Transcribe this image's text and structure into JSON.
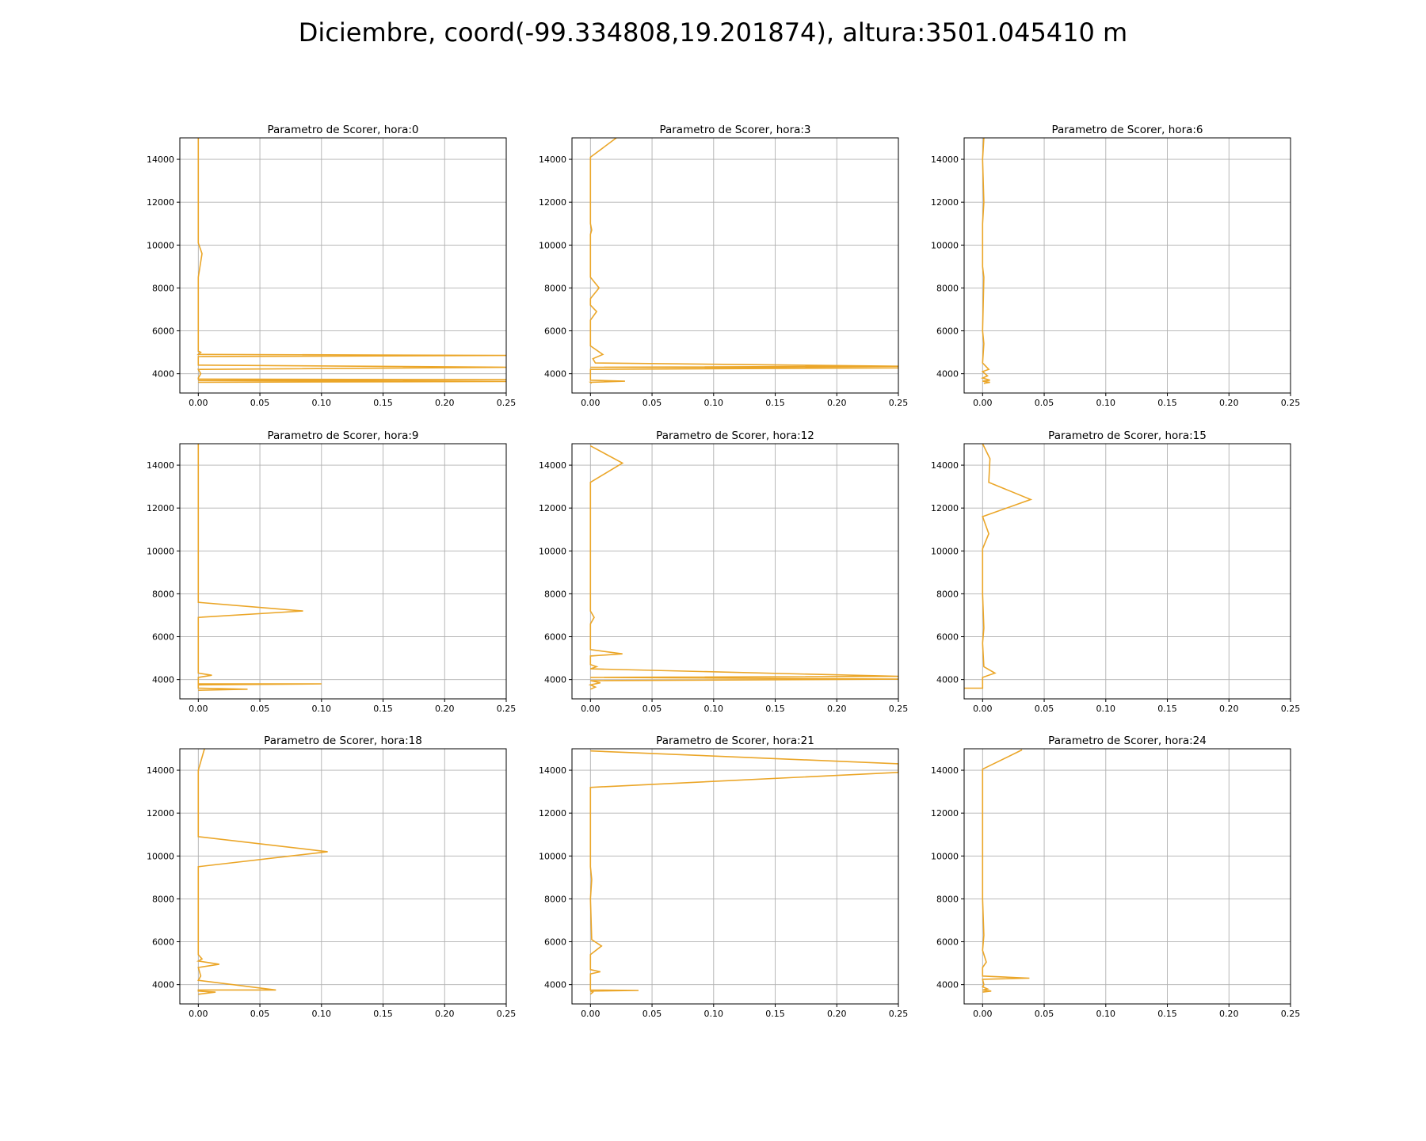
{
  "figure": {
    "suptitle": "Diciembre, coord(-99.334808,19.201874), altura:3501.045410 m",
    "line_color": "#EBA628"
  },
  "chart_data": [
    {
      "type": "line",
      "title": "Parametro de Scorer, hora:0",
      "xlim": [
        -0.015,
        0.25
      ],
      "ylim": [
        3100,
        15000
      ],
      "xticks": [
        "0.00",
        "0.05",
        "0.10",
        "0.15",
        "0.20",
        "0.25"
      ],
      "yticks": [
        "4000",
        "6000",
        "8000",
        "10000",
        "12000",
        "14000"
      ],
      "grid": true,
      "x": [
        0.0,
        0.0,
        0.0,
        0.0,
        0.003,
        0.0,
        0.0,
        0.0,
        0.0,
        0.0,
        0.002,
        0.0,
        0.25,
        0.0,
        0.0,
        0.25,
        0.0,
        0.002,
        0.0,
        0.0,
        0.25,
        0.0,
        0.25,
        0.0
      ],
      "y": [
        15000,
        14000,
        12000,
        10100,
        9600,
        8500,
        8000,
        6000,
        5100,
        5050,
        5000,
        4900,
        4850,
        4800,
        4400,
        4300,
        4200,
        4000,
        3800,
        3750,
        3720,
        3680,
        3640,
        3600
      ]
    },
    {
      "type": "line",
      "title": "Parametro de Scorer, hora:3",
      "xlim": [
        -0.015,
        0.25
      ],
      "ylim": [
        3100,
        15000
      ],
      "xticks": [
        "0.00",
        "0.05",
        "0.10",
        "0.15",
        "0.20",
        "0.25"
      ],
      "yticks": [
        "4000",
        "6000",
        "8000",
        "10000",
        "12000",
        "14000"
      ],
      "grid": true,
      "x": [
        0.021,
        0.0,
        0.0,
        0.001,
        0.0,
        0.0,
        0.007,
        0.0,
        0.0,
        0.005,
        0.0,
        0.0,
        0.0,
        0.01,
        0.002,
        0.004,
        0.25,
        0.0,
        0.25,
        0.0,
        0.0,
        0.028,
        0.0,
        0.001
      ],
      "y": [
        15000,
        14100,
        11000,
        10700,
        10500,
        8500,
        8000,
        7500,
        7200,
        6900,
        6500,
        5400,
        5300,
        4900,
        4700,
        4500,
        4350,
        4300,
        4270,
        4200,
        3700,
        3650,
        3600,
        3550
      ]
    },
    {
      "type": "line",
      "title": "Parametro de Scorer, hora:6",
      "xlim": [
        -0.015,
        0.25
      ],
      "ylim": [
        3100,
        15000
      ],
      "xticks": [
        "0.00",
        "0.05",
        "0.10",
        "0.15",
        "0.20",
        "0.25"
      ],
      "yticks": [
        "4000",
        "6000",
        "8000",
        "10000",
        "12000",
        "14000"
      ],
      "grid": true,
      "x": [
        0.001,
        0.0,
        0.001,
        0.0,
        0.0,
        0.001,
        0.0,
        0.001,
        0.0,
        0.005,
        0.0,
        0.004,
        0.0,
        0.006,
        0.0,
        0.006,
        0.001
      ],
      "y": [
        15000,
        14000,
        12000,
        11000,
        9000,
        8500,
        6000,
        5400,
        4500,
        4200,
        4100,
        3900,
        3800,
        3700,
        3650,
        3600,
        3550
      ]
    },
    {
      "type": "line",
      "title": "Parametro de Scorer, hora:9",
      "xlim": [
        -0.015,
        0.25
      ],
      "ylim": [
        3100,
        15000
      ],
      "xticks": [
        "0.00",
        "0.05",
        "0.10",
        "0.15",
        "0.20",
        "0.25"
      ],
      "yticks": [
        "4000",
        "6000",
        "8000",
        "10000",
        "12000",
        "14000"
      ],
      "grid": true,
      "x": [
        0.0,
        0.0,
        0.0,
        0.0,
        0.0,
        0.085,
        0.0,
        0.0,
        0.0,
        0.011,
        0.0,
        0.0,
        0.1,
        0.0,
        0.0,
        0.04,
        0.0
      ],
      "y": [
        15000,
        14000,
        12000,
        10000,
        7600,
        7200,
        6900,
        5500,
        4300,
        4200,
        4100,
        3800,
        3800,
        3750,
        3600,
        3550,
        3500
      ]
    },
    {
      "type": "line",
      "title": "Parametro de Scorer, hora:12",
      "xlim": [
        -0.015,
        0.25
      ],
      "ylim": [
        3100,
        15000
      ],
      "xticks": [
        "0.00",
        "0.05",
        "0.10",
        "0.15",
        "0.20",
        "0.25"
      ],
      "yticks": [
        "4000",
        "6000",
        "8000",
        "10000",
        "12000",
        "14000"
      ],
      "grid": true,
      "x": [
        0.0,
        0.026,
        0.0,
        0.0,
        0.0,
        0.003,
        0.0,
        0.0,
        0.026,
        0.0,
        0.0,
        0.005,
        0.0,
        0.25,
        0.0,
        0.25,
        0.0,
        0.008,
        0.0,
        0.004,
        0.0
      ],
      "y": [
        14900,
        14100,
        13200,
        10000,
        7200,
        6900,
        6600,
        5400,
        5200,
        5100,
        4700,
        4600,
        4500,
        4150,
        4100,
        4020,
        3950,
        3850,
        3750,
        3650,
        3550
      ]
    },
    {
      "type": "line",
      "title": "Parametro de Scorer, hora:15",
      "xlim": [
        -0.015,
        0.25
      ],
      "ylim": [
        3100,
        15000
      ],
      "xticks": [
        "0.00",
        "0.05",
        "0.10",
        "0.15",
        "0.20",
        "0.25"
      ],
      "yticks": [
        "4000",
        "6000",
        "8000",
        "10000",
        "12000",
        "14000"
      ],
      "grid": true,
      "x": [
        0.0,
        0.006,
        0.005,
        0.039,
        0.0,
        0.005,
        0.0,
        0.0,
        0.001,
        0.0,
        0.001,
        0.01,
        0.0,
        0.0,
        -0.015
      ],
      "y": [
        15000,
        14300,
        13200,
        12400,
        11600,
        10800,
        10100,
        8000,
        6400,
        5700,
        4600,
        4300,
        4100,
        3600,
        3600
      ]
    },
    {
      "type": "line",
      "title": "Parametro de Scorer, hora:18",
      "xlim": [
        -0.015,
        0.25
      ],
      "ylim": [
        3100,
        15000
      ],
      "xticks": [
        "0.00",
        "0.05",
        "0.10",
        "0.15",
        "0.20",
        "0.25"
      ],
      "yticks": [
        "4000",
        "6000",
        "8000",
        "10000",
        "12000",
        "14000"
      ],
      "grid": true,
      "x": [
        0.005,
        0.0,
        0.0,
        0.0,
        0.105,
        0.0,
        0.0,
        0.0,
        0.003,
        0.0,
        0.017,
        0.0,
        0.002,
        0.0,
        0.063,
        0.0,
        0.0,
        0.014,
        0.0
      ],
      "y": [
        15000,
        14000,
        12000,
        10900,
        10200,
        9500,
        6000,
        5400,
        5200,
        5100,
        4950,
        4800,
        4400,
        4200,
        3750,
        3750,
        3700,
        3650,
        3550
      ]
    },
    {
      "type": "line",
      "title": "Parametro de Scorer, hora:21",
      "xlim": [
        -0.015,
        0.25
      ],
      "ylim": [
        3100,
        15000
      ],
      "xticks": [
        "0.00",
        "0.05",
        "0.10",
        "0.15",
        "0.20",
        "0.25"
      ],
      "yticks": [
        "4000",
        "6000",
        "8000",
        "10000",
        "12000",
        "14000"
      ],
      "grid": true,
      "x": [
        0.0,
        0.25,
        0.25,
        0.0,
        0.0,
        0.0,
        0.001,
        0.0,
        0.001,
        0.009,
        0.0,
        0.0,
        0.008,
        0.0,
        0.0,
        0.039,
        0.0,
        0.002,
        0.0
      ],
      "y": [
        14900,
        14300,
        13900,
        13200,
        10000,
        9500,
        8900,
        8000,
        6100,
        5800,
        5400,
        4700,
        4600,
        4500,
        3750,
        3730,
        3700,
        3650,
        3550
      ]
    },
    {
      "type": "line",
      "title": "Parametro de Scorer, hora:24",
      "xlim": [
        -0.015,
        0.25
      ],
      "ylim": [
        3100,
        15000
      ],
      "xticks": [
        "0.00",
        "0.05",
        "0.10",
        "0.15",
        "0.20",
        "0.25"
      ],
      "yticks": [
        "4000",
        "6000",
        "8000",
        "10000",
        "12000",
        "14000"
      ],
      "grid": true,
      "x": [
        0.032,
        0.0,
        0.0,
        0.0,
        0.0,
        0.001,
        0.0,
        0.003,
        0.0,
        0.0,
        0.038,
        0.0,
        0.001,
        0.0,
        0.004,
        0.0,
        0.007,
        0.0
      ],
      "y": [
        14950,
        14050,
        12000,
        10000,
        8000,
        6300,
        5600,
        5050,
        4800,
        4400,
        4300,
        4250,
        4000,
        3900,
        3800,
        3750,
        3700,
        3650
      ]
    }
  ]
}
